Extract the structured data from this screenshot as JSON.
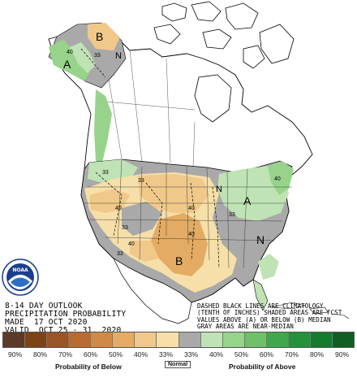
{
  "map": {
    "labels": {
      "alaska_B": "B",
      "alaska_A": "A",
      "alaska_N": "N",
      "alaska_40": "40",
      "alaska_33": "33",
      "west_33a": "33",
      "west_33b": "33",
      "sw_40": "40",
      "sw_33": "33",
      "plains_40": "40",
      "tx_B": "B",
      "tx_40a": "40",
      "tx_33": "33",
      "tx_40b": "40",
      "east_A": "A",
      "east_33": "33",
      "se_N": "N",
      "mid_N": "N",
      "ne_40": "40"
    }
  },
  "colors": {
    "below_33": "#f5d89c",
    "below_40": "#e0b56a",
    "below_50": "#cf9a4a",
    "normal": "#a9a9a9",
    "above_33": "#b7e0aa",
    "above_40": "#8fcf84"
  },
  "title": {
    "line1": "8-14 DAY OUTLOOK",
    "line2": "PRECIPITATION PROBABILITY",
    "line3": "MADE  17 OCT 2020",
    "line4": "VALID  OCT 25 - 31, 2020"
  },
  "note": {
    "line1": "DASHED BLACK LINES ARE CLIMATOLOGY",
    "line2": "(TENTH OF INCHES) SHADED AREAS ARE FCST",
    "line3": "VALUES ABOVE (A) OR BELOW (B) MEDIAN",
    "line4": "GRAY AREAS ARE NEAR-MEDIAN"
  },
  "legend": {
    "colors": [
      "#5b3a29",
      "#7b4316",
      "#9a5426",
      "#b96b30",
      "#d18a45",
      "#e3ab63",
      "#f0c98a",
      "#f6dfa8",
      "#a9a9a9",
      "#bfe3b4",
      "#97d38b",
      "#6fc06a",
      "#3fa84c",
      "#23923a",
      "#157b2f",
      "#0f5f24"
    ],
    "ticks": [
      "90%",
      "80%",
      "70%",
      "60%",
      "50%",
      "40%",
      "33%",
      "33%",
      "40%",
      "50%",
      "60%",
      "70%",
      "80%",
      "90%"
    ],
    "below_caption": "Probability of Below",
    "normal_caption": "Normal",
    "above_caption": "Probability of Above"
  }
}
